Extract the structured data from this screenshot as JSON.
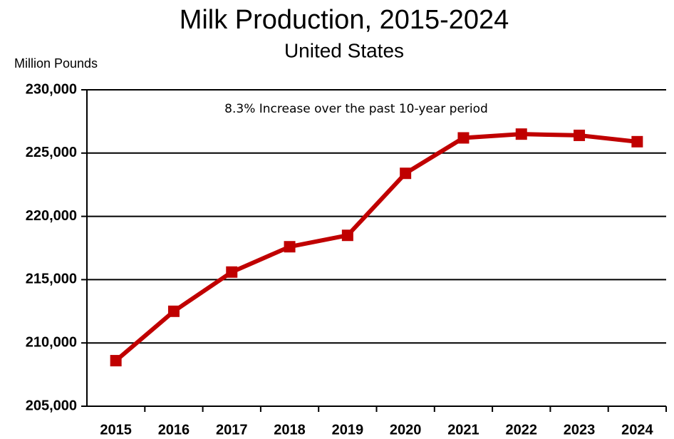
{
  "chart_data": {
    "type": "line",
    "title": "Milk Production, 2015-2024",
    "subtitle": "United States",
    "y_label": "Million Pounds",
    "annotation": "8.3% Increase over the past 10-year period",
    "categories": [
      "2015",
      "2016",
      "2017",
      "2018",
      "2019",
      "2020",
      "2021",
      "2022",
      "2023",
      "2024"
    ],
    "series": [
      {
        "name": "Milk Production",
        "color": "#c00000",
        "values": [
          208600,
          212500,
          215600,
          217600,
          218500,
          223400,
          226200,
          226500,
          226400,
          225900
        ]
      }
    ],
    "ylim": [
      205000,
      230000
    ],
    "yticks": [
      {
        "value": 205000,
        "label": "205,000"
      },
      {
        "value": 210000,
        "label": "210,000"
      },
      {
        "value": 215000,
        "label": "215,000"
      },
      {
        "value": 220000,
        "label": "220,000"
      },
      {
        "value": 225000,
        "label": "225,000"
      },
      {
        "value": 230000,
        "label": "230,000"
      }
    ],
    "grid": true
  }
}
